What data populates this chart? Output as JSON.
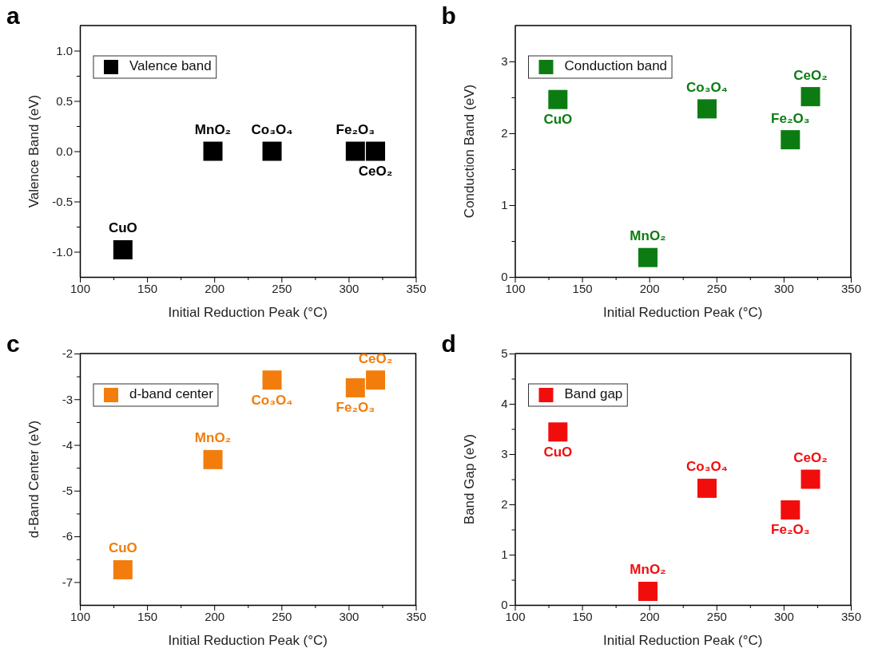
{
  "chart_data": [
    {
      "type": "scatter",
      "title": "a",
      "xlabel": "Initial Reduction Peak (°C)",
      "ylabel": "Valence Band (eV)",
      "x": [
        132,
        199,
        243,
        305,
        320
      ],
      "marker": "square",
      "legend": "top left",
      "series": [
        {
          "name": "Valence band",
          "color": "#000000",
          "values": [
            -0.98,
            0,
            0,
            0,
            0
          ]
        }
      ],
      "xlim": [
        100,
        350
      ],
      "xticks": [
        100,
        {
          "value": 125,
          "label": null
        },
        150,
        {
          "value": 175,
          "label": null
        },
        200,
        {
          "value": 225,
          "label": null
        },
        250,
        {
          "value": 275,
          "label": null
        },
        300,
        {
          "value": 325,
          "label": null
        },
        350
      ],
      "ylim": [
        -1.25,
        1.25
      ],
      "yticks": [
        {
          "value": -1,
          "label": "-1.0"
        },
        {
          "value": -0.75,
          "label": null
        },
        {
          "value": -0.5,
          "label": "-0.5"
        },
        {
          "value": -0.25,
          "label": null
        },
        {
          "value": 0,
          "label": "0.0"
        },
        {
          "value": 0.25,
          "label": null
        },
        {
          "value": 0.5,
          "label": "0.5"
        },
        {
          "value": 0.75,
          "label": null
        },
        {
          "value": 1,
          "label": "1.0"
        }
      ],
      "annotations": [
        {
          "text": "CuO",
          "x": 132,
          "y": -0.98
        },
        {
          "text": "MnO₂",
          "x": 199,
          "y": 0
        },
        {
          "text": "Co₃O₄",
          "x": 243,
          "y": 0
        },
        {
          "text": "Fe₂O₃",
          "x": 305,
          "y": 0
        },
        {
          "text": "CeO₂",
          "x": 320,
          "y": 0
        }
      ]
    },
    {
      "type": "scatter",
      "title": "b",
      "xlabel": "Initial Reduction Peak (°C)",
      "ylabel": "Conduction Band (eV)",
      "x": [
        132,
        199,
        243,
        305,
        320
      ],
      "marker": "square",
      "legend": "top left",
      "series": [
        {
          "name": "Conduction band",
          "color": "#0c7c12",
          "values": [
            2.47,
            0.27,
            2.34,
            1.91,
            2.51
          ]
        }
      ],
      "xlim": [
        100,
        350
      ],
      "xticks": [
        100,
        {
          "value": 125,
          "label": null
        },
        150,
        {
          "value": 175,
          "label": null
        },
        200,
        {
          "value": 225,
          "label": null
        },
        250,
        {
          "value": 275,
          "label": null
        },
        300,
        {
          "value": 325,
          "label": null
        },
        350
      ],
      "ylim": [
        0,
        3.5
      ],
      "yticks": [
        0,
        {
          "value": 0.5,
          "label": null
        },
        1,
        {
          "value": 1.5,
          "label": null
        },
        2,
        {
          "value": 2.5,
          "label": null
        },
        3
      ],
      "annotations": [
        {
          "text": "CuO",
          "x": 132,
          "y": 2.47
        },
        {
          "text": "MnO₂",
          "x": 199,
          "y": 0.27
        },
        {
          "text": "Co₃O₄",
          "x": 243,
          "y": 2.34
        },
        {
          "text": "Fe₂O₃",
          "x": 305,
          "y": 1.91
        },
        {
          "text": "CeO₂",
          "x": 320,
          "y": 2.51
        }
      ]
    },
    {
      "type": "scatter",
      "title": "c",
      "xlabel": "Initial Reduction Peak (°C)",
      "ylabel": "d-Band Center (eV)",
      "x": [
        132,
        199,
        243,
        305,
        320
      ],
      "marker": "square",
      "legend": "top left",
      "series": [
        {
          "name": "d-band center",
          "color": "#f27d0c",
          "values": [
            -6.73,
            -4.32,
            -2.58,
            -2.75,
            -2.58
          ]
        }
      ],
      "xlim": [
        100,
        350
      ],
      "xticks": [
        100,
        {
          "value": 125,
          "label": null
        },
        150,
        {
          "value": 175,
          "label": null
        },
        200,
        {
          "value": 225,
          "label": null
        },
        250,
        {
          "value": 275,
          "label": null
        },
        300,
        {
          "value": 325,
          "label": null
        },
        350
      ],
      "ylim": [
        -7.5,
        -2
      ],
      "yticks": [
        -7,
        {
          "value": -6.5,
          "label": null
        },
        -6,
        {
          "value": -5.5,
          "label": null
        },
        -5,
        {
          "value": -4.5,
          "label": null
        },
        -4,
        {
          "value": -3.5,
          "label": null
        },
        -3,
        {
          "value": -2.5,
          "label": null
        },
        -2
      ],
      "annotations": [
        {
          "text": "CuO",
          "x": 132,
          "y": -6.73
        },
        {
          "text": "MnO₂",
          "x": 199,
          "y": -4.32
        },
        {
          "text": "Co₃O₄",
          "x": 243,
          "y": -2.58
        },
        {
          "text": "Fe₂O₃",
          "x": 305,
          "y": -2.75
        },
        {
          "text": "CeO₂",
          "x": 320,
          "y": -2.58
        }
      ]
    },
    {
      "type": "scatter",
      "title": "d",
      "xlabel": "Initial Reduction Peak (°C)",
      "ylabel": "Band Gap (eV)",
      "x": [
        132,
        199,
        243,
        305,
        320
      ],
      "marker": "square",
      "legend": "top left",
      "series": [
        {
          "name": "Band gap",
          "color": "#f20d0d",
          "values": [
            3.44,
            0.27,
            2.32,
            1.89,
            2.5
          ]
        }
      ],
      "xlim": [
        100,
        350
      ],
      "xticks": [
        100,
        {
          "value": 125,
          "label": null
        },
        150,
        {
          "value": 175,
          "label": null
        },
        200,
        {
          "value": 225,
          "label": null
        },
        250,
        {
          "value": 275,
          "label": null
        },
        300,
        {
          "value": 325,
          "label": null
        },
        350
      ],
      "ylim": [
        0,
        5
      ],
      "yticks": [
        0,
        {
          "value": 0.5,
          "label": null
        },
        1,
        {
          "value": 1.5,
          "label": null
        },
        2,
        {
          "value": 2.5,
          "label": null
        },
        3,
        {
          "value": 3.5,
          "label": null
        },
        4,
        {
          "value": 4.5,
          "label": null
        },
        5
      ],
      "annotations": [
        {
          "text": "CuO",
          "x": 132,
          "y": 3.44
        },
        {
          "text": "MnO₂",
          "x": 199,
          "y": 0.27
        },
        {
          "text": "Co₃O₄",
          "x": 243,
          "y": 2.32
        },
        {
          "text": "Fe₂O₃",
          "x": 305,
          "y": 1.89
        },
        {
          "text": "CeO₂",
          "x": 320,
          "y": 2.5
        }
      ]
    }
  ]
}
